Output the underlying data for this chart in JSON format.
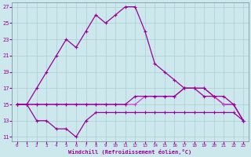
{
  "xlabel": "Windchill (Refroidissement éolien,°C)",
  "background_color": "#cce8ec",
  "grid_color": "#aacdd4",
  "line_color_dark": "#990099",
  "line_color_light": "#cc44cc",
  "xlim": [
    -0.5,
    23.5
  ],
  "ylim": [
    10.5,
    27.5
  ],
  "yticks": [
    11,
    13,
    15,
    17,
    19,
    21,
    23,
    25,
    27
  ],
  "xticks": [
    0,
    1,
    2,
    3,
    4,
    5,
    6,
    7,
    8,
    9,
    10,
    11,
    12,
    13,
    14,
    15,
    16,
    17,
    18,
    19,
    20,
    21,
    22,
    23
  ],
  "line_main_x": [
    0,
    1,
    2,
    3,
    4,
    5,
    6,
    7,
    8,
    9,
    10,
    11,
    12,
    13,
    14,
    15,
    16,
    17,
    18,
    19,
    20,
    21,
    22,
    23
  ],
  "line_main_y": [
    15,
    15,
    17,
    19,
    21,
    23,
    22,
    24,
    26,
    25,
    26,
    27,
    27,
    24,
    20,
    19,
    18,
    17,
    17,
    16,
    16,
    15,
    15,
    13
  ],
  "line_mid1_x": [
    0,
    1,
    2,
    3,
    4,
    5,
    6,
    7,
    8,
    9,
    10,
    11,
    12,
    13,
    14,
    15,
    16,
    17,
    18,
    19,
    20,
    21,
    22,
    23
  ],
  "line_mid1_y": [
    15,
    15,
    15,
    15,
    15,
    15,
    15,
    15,
    15,
    15,
    15,
    15,
    15,
    16,
    16,
    16,
    16,
    17,
    17,
    17,
    16,
    15,
    15,
    13
  ],
  "line_mid2_x": [
    0,
    1,
    2,
    3,
    4,
    5,
    6,
    7,
    8,
    9,
    10,
    11,
    12,
    13,
    14,
    15,
    16,
    17,
    18,
    19,
    20,
    21,
    22,
    23
  ],
  "line_mid2_y": [
    15,
    15,
    15,
    15,
    15,
    15,
    15,
    15,
    15,
    15,
    15,
    15,
    16,
    16,
    16,
    16,
    16,
    17,
    17,
    17,
    16,
    16,
    15,
    13
  ],
  "line_bot_x": [
    0,
    1,
    2,
    3,
    4,
    5,
    6,
    7,
    8,
    9,
    10,
    11,
    12,
    13,
    14,
    15,
    16,
    17,
    18,
    19,
    20,
    21,
    22,
    23
  ],
  "line_bot_y": [
    15,
    15,
    13,
    13,
    12,
    12,
    11,
    13,
    14,
    14,
    14,
    14,
    14,
    14,
    14,
    14,
    14,
    14,
    14,
    14,
    14,
    14,
    14,
    13
  ]
}
